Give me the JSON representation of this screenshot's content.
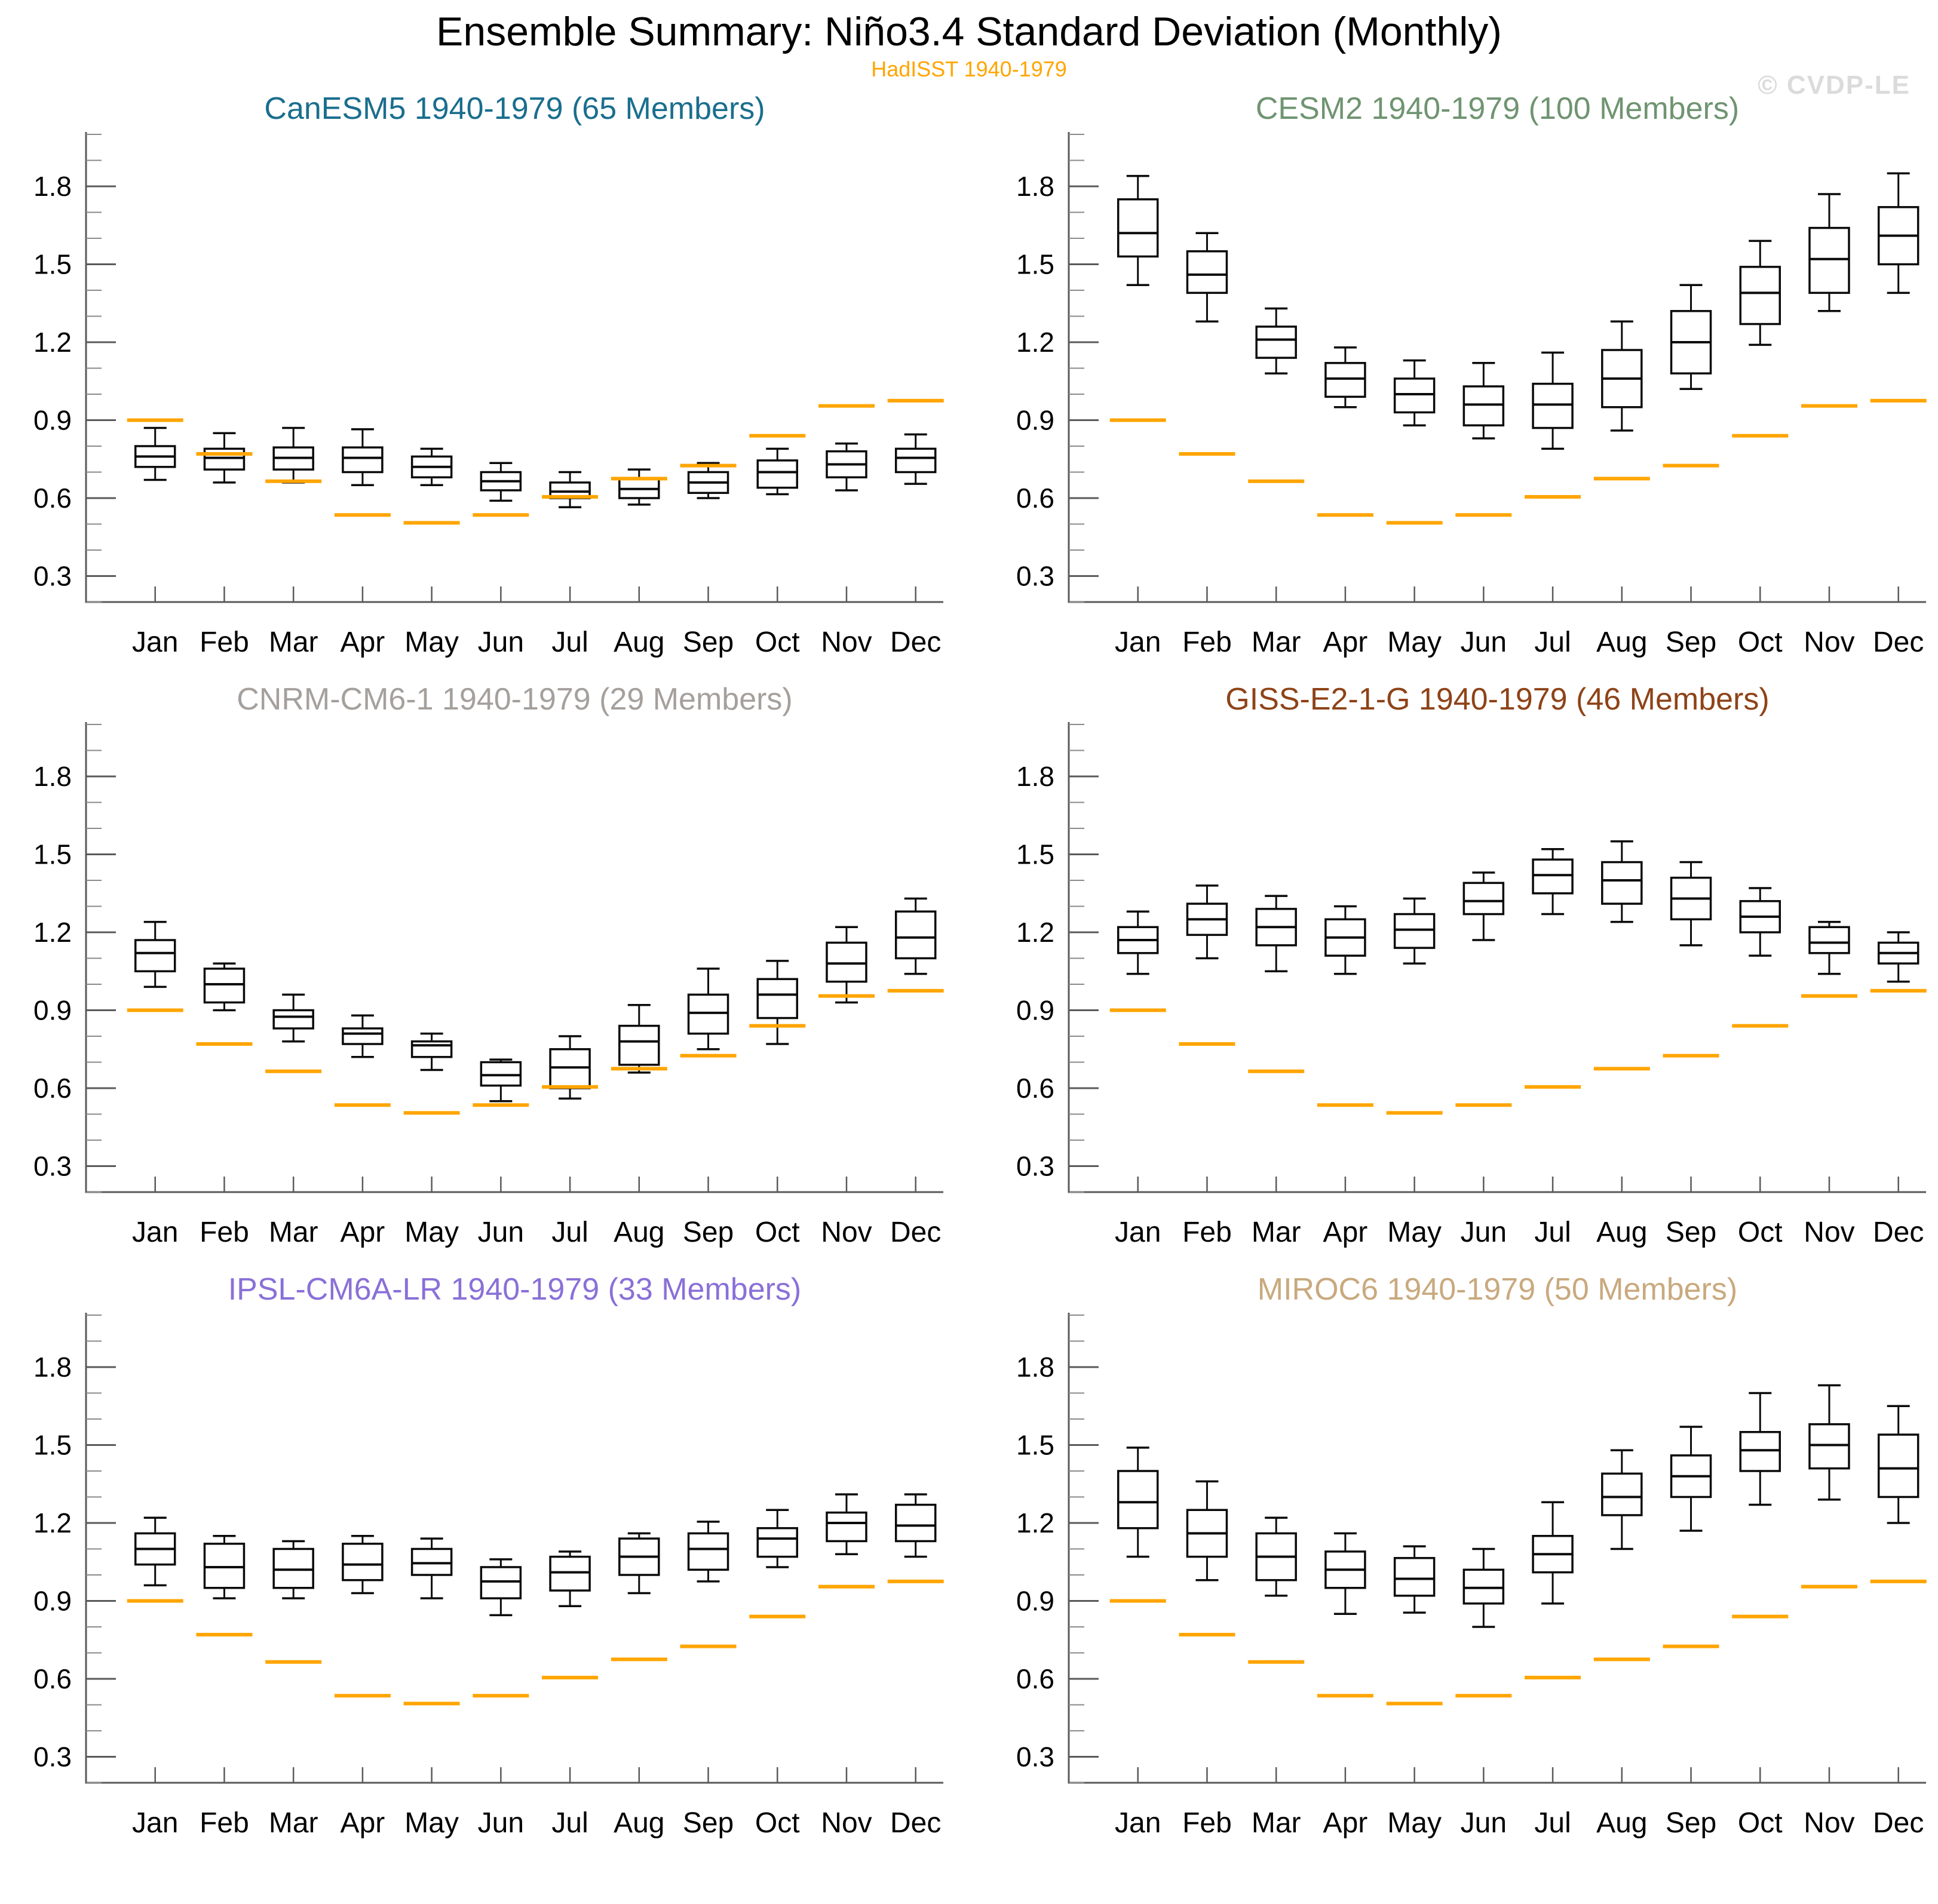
{
  "header": {
    "title": "Ensemble Summary: Niño3.4 Standard Deviation (Monthly)",
    "subtitle": "HadISST 1940-1979",
    "watermark": "© CVDP-LE"
  },
  "chart_data": {
    "type": "boxplot",
    "categories": [
      "Jan",
      "Feb",
      "Mar",
      "Apr",
      "May",
      "Jun",
      "Jul",
      "Aug",
      "Sep",
      "Oct",
      "Nov",
      "Dec"
    ],
    "ylabel": "",
    "xlabel": "",
    "ylim": [
      0.2,
      2.0
    ],
    "yticks_major": [
      0.3,
      0.6,
      0.9,
      1.2,
      1.5,
      1.8
    ],
    "ytick_labels": [
      "0.3",
      "0.6",
      "0.9",
      "1.2",
      "1.5",
      "1.8"
    ],
    "ytick_minor_step": 0.1,
    "grid": "off",
    "legend_position": "none",
    "observation": {
      "label": "HadISST 1940-1979",
      "color": "#FFA500",
      "values": [
        0.9,
        0.77,
        0.665,
        0.535,
        0.505,
        0.535,
        0.605,
        0.675,
        0.725,
        0.84,
        0.955,
        0.975
      ]
    },
    "panels": [
      {
        "title": "CanESM5 1940-1979 (65 Members)",
        "color": "#1A6E8E",
        "whisker_low": [
          0.67,
          0.66,
          0.66,
          0.65,
          0.65,
          0.59,
          0.565,
          0.575,
          0.6,
          0.615,
          0.63,
          0.655
        ],
        "q1": [
          0.72,
          0.71,
          0.71,
          0.7,
          0.68,
          0.63,
          0.6,
          0.6,
          0.62,
          0.64,
          0.68,
          0.7
        ],
        "median": [
          0.76,
          0.755,
          0.755,
          0.755,
          0.72,
          0.665,
          0.625,
          0.635,
          0.66,
          0.7,
          0.73,
          0.755
        ],
        "q3": [
          0.8,
          0.79,
          0.795,
          0.795,
          0.76,
          0.7,
          0.66,
          0.675,
          0.7,
          0.745,
          0.78,
          0.79
        ],
        "whisker_high": [
          0.87,
          0.85,
          0.87,
          0.865,
          0.79,
          0.735,
          0.7,
          0.71,
          0.735,
          0.79,
          0.81,
          0.845
        ]
      },
      {
        "title": "CESM2 1940-1979 (100 Members)",
        "color": "#6F9471",
        "whisker_low": [
          1.42,
          1.28,
          1.08,
          0.95,
          0.88,
          0.83,
          0.79,
          0.86,
          1.02,
          1.19,
          1.32,
          1.39
        ],
        "q1": [
          1.53,
          1.39,
          1.14,
          0.99,
          0.93,
          0.88,
          0.87,
          0.95,
          1.08,
          1.27,
          1.39,
          1.5
        ],
        "median": [
          1.62,
          1.46,
          1.21,
          1.06,
          1.0,
          0.96,
          0.96,
          1.06,
          1.2,
          1.39,
          1.52,
          1.61
        ],
        "q3": [
          1.75,
          1.55,
          1.26,
          1.12,
          1.06,
          1.03,
          1.04,
          1.17,
          1.32,
          1.49,
          1.64,
          1.72
        ],
        "whisker_high": [
          1.84,
          1.62,
          1.33,
          1.18,
          1.13,
          1.12,
          1.16,
          1.28,
          1.42,
          1.59,
          1.77,
          1.85
        ]
      },
      {
        "title": "CNRM-CM6-1 1940-1979 (29 Members)",
        "color": "#A5A09C",
        "whisker_low": [
          0.99,
          0.9,
          0.78,
          0.72,
          0.67,
          0.55,
          0.56,
          0.66,
          0.75,
          0.77,
          0.93,
          1.04
        ],
        "q1": [
          1.05,
          0.93,
          0.83,
          0.77,
          0.72,
          0.61,
          0.6,
          0.69,
          0.81,
          0.87,
          1.01,
          1.1
        ],
        "median": [
          1.12,
          1.0,
          0.875,
          0.81,
          0.765,
          0.65,
          0.68,
          0.78,
          0.89,
          0.96,
          1.08,
          1.18
        ],
        "q3": [
          1.17,
          1.06,
          0.9,
          0.83,
          0.78,
          0.7,
          0.75,
          0.84,
          0.96,
          1.02,
          1.16,
          1.28
        ],
        "whisker_high": [
          1.24,
          1.08,
          0.96,
          0.88,
          0.81,
          0.71,
          0.8,
          0.92,
          1.06,
          1.09,
          1.22,
          1.33
        ]
      },
      {
        "title": "GISS-E2-1-G 1940-1979 (46 Members)",
        "color": "#8E4318",
        "whisker_low": [
          1.04,
          1.1,
          1.05,
          1.04,
          1.08,
          1.17,
          1.27,
          1.24,
          1.15,
          1.11,
          1.04,
          1.01
        ],
        "q1": [
          1.12,
          1.19,
          1.15,
          1.11,
          1.14,
          1.27,
          1.35,
          1.31,
          1.25,
          1.2,
          1.12,
          1.08
        ],
        "median": [
          1.17,
          1.25,
          1.22,
          1.18,
          1.21,
          1.32,
          1.42,
          1.4,
          1.33,
          1.26,
          1.16,
          1.12
        ],
        "q3": [
          1.22,
          1.31,
          1.29,
          1.25,
          1.27,
          1.39,
          1.48,
          1.47,
          1.41,
          1.32,
          1.22,
          1.16
        ],
        "whisker_high": [
          1.28,
          1.38,
          1.34,
          1.3,
          1.33,
          1.43,
          1.52,
          1.55,
          1.47,
          1.37,
          1.24,
          1.2
        ]
      },
      {
        "title": "IPSL-CM6A-LR 1940-1979 (33 Members)",
        "color": "#8A70D8",
        "whisker_low": [
          0.96,
          0.91,
          0.91,
          0.93,
          0.91,
          0.845,
          0.88,
          0.93,
          0.975,
          1.03,
          1.08,
          1.07
        ],
        "q1": [
          1.04,
          0.95,
          0.95,
          0.98,
          1.0,
          0.91,
          0.94,
          1.0,
          1.02,
          1.07,
          1.13,
          1.13
        ],
        "median": [
          1.1,
          1.03,
          1.02,
          1.04,
          1.045,
          0.975,
          1.01,
          1.07,
          1.1,
          1.14,
          1.2,
          1.19
        ],
        "q3": [
          1.16,
          1.12,
          1.1,
          1.12,
          1.1,
          1.03,
          1.07,
          1.14,
          1.16,
          1.18,
          1.24,
          1.27
        ],
        "whisker_high": [
          1.22,
          1.15,
          1.13,
          1.15,
          1.14,
          1.06,
          1.09,
          1.16,
          1.205,
          1.25,
          1.31,
          1.31
        ]
      },
      {
        "title": "MIROC6 1940-1979 (50 Members)",
        "color": "#C9A97E",
        "whisker_low": [
          1.07,
          0.98,
          0.92,
          0.85,
          0.855,
          0.8,
          0.89,
          1.1,
          1.17,
          1.27,
          1.29,
          1.2
        ],
        "q1": [
          1.18,
          1.07,
          0.98,
          0.95,
          0.92,
          0.89,
          1.01,
          1.23,
          1.3,
          1.4,
          1.41,
          1.3
        ],
        "median": [
          1.28,
          1.16,
          1.07,
          1.02,
          0.985,
          0.95,
          1.08,
          1.3,
          1.38,
          1.48,
          1.5,
          1.41
        ],
        "q3": [
          1.4,
          1.25,
          1.16,
          1.09,
          1.065,
          1.02,
          1.15,
          1.39,
          1.46,
          1.55,
          1.58,
          1.54
        ],
        "whisker_high": [
          1.49,
          1.36,
          1.22,
          1.16,
          1.11,
          1.1,
          1.28,
          1.48,
          1.57,
          1.7,
          1.73,
          1.65
        ]
      }
    ]
  }
}
